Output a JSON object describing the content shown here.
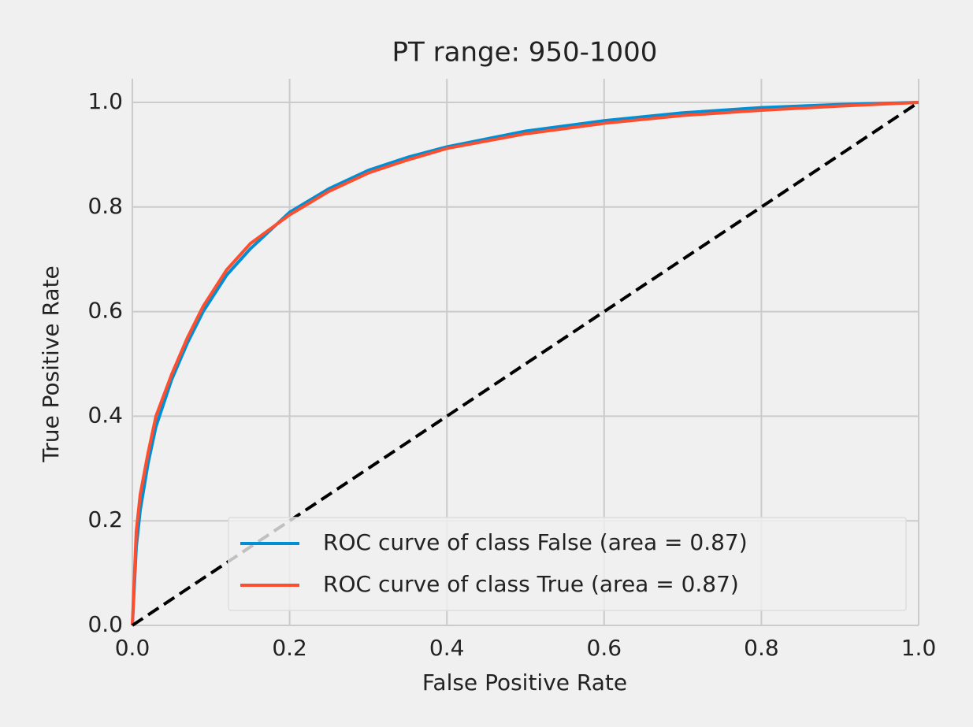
{
  "chart_data": {
    "type": "line",
    "title": "PT range: 950-1000",
    "xlabel": "False Positive Rate",
    "ylabel": "True Positive Rate",
    "xlim": [
      0,
      1
    ],
    "ylim": [
      0,
      1
    ],
    "xticks": [
      {
        "value": 0,
        "label": "0.0"
      },
      0.2,
      0.4,
      0.6,
      0.8,
      {
        "value": 1,
        "label": "1.0"
      }
    ],
    "yticks": [
      {
        "value": 0,
        "label": "0.0"
      },
      0.2,
      0.4,
      0.6,
      0.8,
      {
        "value": 1,
        "label": "1.0"
      }
    ],
    "grid": true,
    "legend": "lower right",
    "series": [
      {
        "name": "ROC curve of class False (area = 0.87)",
        "color": "#008fd5",
        "x": [
          0,
          0.005,
          0.01,
          0.02,
          0.03,
          0.05,
          0.07,
          0.09,
          0.12,
          0.15,
          0.2,
          0.25,
          0.3,
          0.35,
          0.4,
          0.5,
          0.6,
          0.7,
          0.8,
          0.9,
          1
        ],
        "values": [
          0,
          0.15,
          0.22,
          0.31,
          0.38,
          0.47,
          0.54,
          0.6,
          0.67,
          0.72,
          0.79,
          0.835,
          0.87,
          0.895,
          0.915,
          0.945,
          0.965,
          0.98,
          0.99,
          0.996,
          1
        ]
      },
      {
        "name": "ROC curve of class True (area = 0.87)",
        "color": "#fc4f30",
        "x": [
          0,
          0.005,
          0.01,
          0.02,
          0.03,
          0.05,
          0.07,
          0.09,
          0.12,
          0.15,
          0.2,
          0.25,
          0.3,
          0.35,
          0.4,
          0.5,
          0.6,
          0.7,
          0.8,
          0.9,
          1
        ],
        "values": [
          0,
          0.18,
          0.25,
          0.33,
          0.4,
          0.48,
          0.55,
          0.61,
          0.68,
          0.73,
          0.785,
          0.83,
          0.865,
          0.89,
          0.912,
          0.94,
          0.96,
          0.975,
          0.985,
          0.993,
          1
        ]
      }
    ],
    "reference_line": {
      "x": [
        0,
        1
      ],
      "values": [
        0,
        1
      ],
      "color": "#000000",
      "dashed": true
    }
  }
}
